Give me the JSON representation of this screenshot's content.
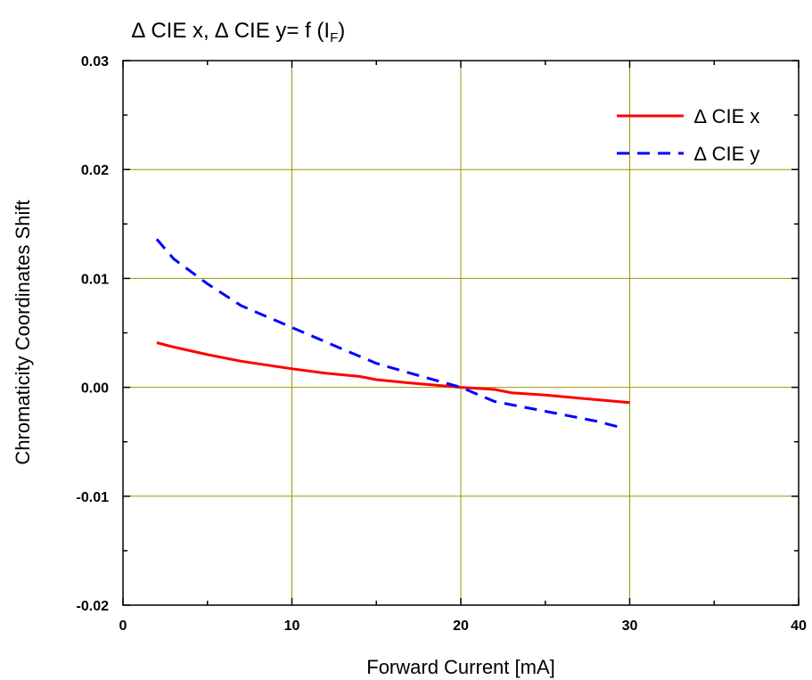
{
  "chart_data": {
    "type": "line",
    "title_main": "∆ CIE x, ∆ CIE y= f (I",
    "title_sub": "F",
    "title_close": ")",
    "xlabel": "Forward Current [mA]",
    "ylabel": "Chromaticity Coordinates Shift",
    "xlim": [
      0,
      40
    ],
    "ylim": [
      -0.02,
      0.03
    ],
    "x_ticks": [
      0,
      10,
      20,
      30,
      40
    ],
    "x_tick_labels": [
      "0",
      "10",
      "20",
      "30",
      "40"
    ],
    "y_ticks": [
      -0.02,
      -0.01,
      0.0,
      0.01,
      0.02,
      0.03
    ],
    "y_tick_labels": [
      "-0.02",
      "-0.01",
      "0.00",
      "0.01",
      "0.02",
      "0.03"
    ],
    "grid": true,
    "grid_color": "#999900",
    "legend_position": "top-right",
    "series": [
      {
        "name": "∆ CIE x",
        "color": "#ff0000",
        "style": "solid",
        "x": [
          2,
          3,
          5,
          7,
          10,
          12,
          14,
          15,
          17,
          20,
          22,
          23,
          25,
          27,
          30
        ],
        "y": [
          0.0041,
          0.0037,
          0.003,
          0.0024,
          0.0017,
          0.0013,
          0.001,
          0.0007,
          0.0004,
          0.0,
          -0.0002,
          -0.0005,
          -0.0007,
          -0.001,
          -0.0014
        ]
      },
      {
        "name": "∆ CIE y",
        "color": "#0000ff",
        "style": "dashed",
        "x": [
          2,
          3,
          5,
          7,
          10,
          13,
          15,
          17,
          20,
          22,
          25,
          28,
          29.5
        ],
        "y": [
          0.0136,
          0.0118,
          0.0095,
          0.0075,
          0.0055,
          0.0035,
          0.0022,
          0.0013,
          0.0,
          -0.0013,
          -0.0022,
          -0.0031,
          -0.0037
        ]
      }
    ]
  }
}
